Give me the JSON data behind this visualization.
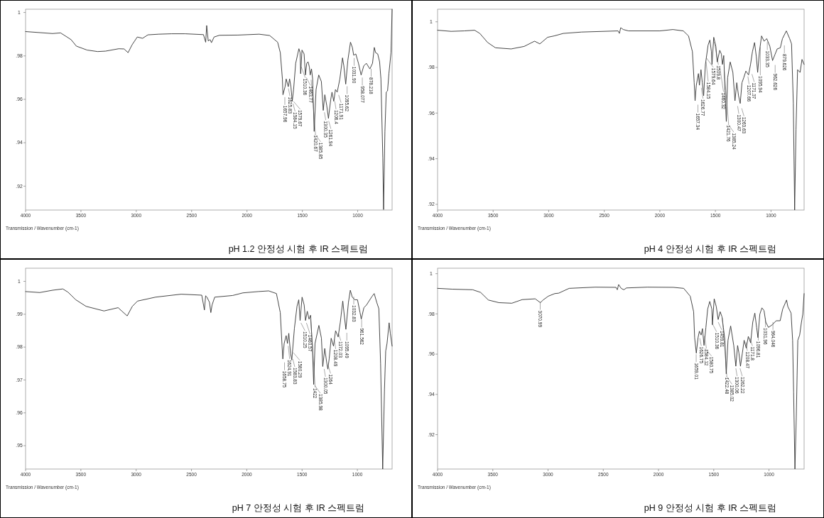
{
  "chart_data": [
    {
      "type": "line",
      "title": "pH 1.2 안정성 시험 후 IR 스펙트럼",
      "xlabel": "Transmission / Wavenumber (cm-1)",
      "xlim": [
        4000,
        689
      ],
      "xticks": [
        4000,
        3500,
        3000,
        2500,
        2000,
        1500,
        1000
      ],
      "ylim": [
        0.909,
        1.0015
      ],
      "yticks": [
        {
          "value": 1,
          "label": "1"
        },
        {
          "value": 0.98,
          "label": ".98"
        },
        {
          "value": 0.96,
          "label": ".96"
        },
        {
          "value": 0.94,
          "label": ".94"
        },
        {
          "value": 0.92,
          "label": ".92"
        }
      ],
      "x": [
        4000,
        3756,
        3684,
        3589,
        3541,
        3445,
        3349,
        3278,
        3158,
        3110,
        3074,
        3038,
        2991,
        2943,
        2895,
        2799,
        2680,
        2560,
        2393,
        2373,
        2364,
        2350,
        2333,
        2321,
        2297,
        2249,
        2082,
        1890,
        1795,
        1723,
        1699,
        1680,
        1675,
        1656,
        1646,
        1627,
        1615,
        1603,
        1591,
        1579,
        1560,
        1531,
        1520,
        1515,
        1503,
        1484,
        1472,
        1460,
        1448,
        1436,
        1429,
        1417,
        1407,
        1393,
        1376,
        1352,
        1328,
        1311,
        1297,
        1280,
        1264,
        1244,
        1232,
        1216,
        1201,
        1185,
        1161,
        1137,
        1125,
        1108,
        1089,
        1065,
        1048,
        1036,
        1017,
        993,
        969,
        945,
        922,
        890,
        866,
        850,
        838,
        819,
        802,
        790,
        773,
        766,
        754,
        742,
        730,
        718,
        699,
        689
      ],
      "series": [
        {
          "color": "#333333",
          "values": [
            0.9912,
            0.9903,
            0.9906,
            0.9875,
            0.9845,
            0.9827,
            0.982,
            0.9822,
            0.9833,
            0.9832,
            0.9815,
            0.9851,
            0.9887,
            0.9881,
            0.9897,
            0.99,
            0.9902,
            0.9902,
            0.9898,
            0.9863,
            0.994,
            0.9869,
            0.9875,
            0.9861,
            0.9887,
            0.9895,
            0.9896,
            0.99,
            0.9894,
            0.9863,
            0.9815,
            0.9694,
            0.9621,
            0.9658,
            0.9694,
            0.9658,
            0.9694,
            0.9658,
            0.9591,
            0.9645,
            0.9766,
            0.9833,
            0.9815,
            0.9718,
            0.9827,
            0.9809,
            0.9712,
            0.9766,
            0.9773,
            0.9748,
            0.9712,
            0.974,
            0.9694,
            0.9452,
            0.9645,
            0.9712,
            0.9682,
            0.9549,
            0.9621,
            0.9573,
            0.9512,
            0.9597,
            0.9633,
            0.9591,
            0.9645,
            0.9633,
            0.9694,
            0.9791,
            0.9754,
            0.967,
            0.9779,
            0.9863,
            0.9839,
            0.9803,
            0.9809,
            0.9766,
            0.9712,
            0.9754,
            0.9766,
            0.974,
            0.9766,
            0.9839,
            0.9815,
            0.9809,
            0.9773,
            0.9694,
            0.9331,
            0.9092,
            0.9452,
            0.9633,
            0.9639,
            0.9718,
            0.9815,
            1.0015
          ]
        }
      ],
      "annotations": [
        {
          "text": "1657.96",
          "x": 1657.96,
          "y": 0.962
        },
        {
          "text": "1625.83",
          "x": 1625.83,
          "y": 0.966
        },
        {
          "text": "1584.15",
          "x": 1584.15,
          "y": 0.959
        },
        {
          "text": "1579.67",
          "x": 1579.67,
          "y": 0.96
        },
        {
          "text": "1510.36",
          "x": 1510.36,
          "y": 0.976
        },
        {
          "text": "1463.77",
          "x": 1463.77,
          "y": 0.971
        },
        {
          "text": "1420.67",
          "x": 1420.67,
          "y": 0.97
        },
        {
          "text": "1385.85",
          "x": 1385.85,
          "y": 0.945
        },
        {
          "text": "1300.35",
          "x": 1300.35,
          "y": 0.955
        },
        {
          "text": "1261.94",
          "x": 1261.94,
          "y": 0.951
        },
        {
          "text": "1206.4",
          "x": 1206.4,
          "y": 0.96
        },
        {
          "text": "1171.91",
          "x": 1171.91,
          "y": 0.963
        },
        {
          "text": "1095.62",
          "x": 1095.62,
          "y": 0.967
        },
        {
          "text": "1031.90",
          "x": 1031.9,
          "y": 0.98
        },
        {
          "text": "958.077",
          "x": 958.077,
          "y": 0.971
        },
        {
          "text": "878.218",
          "x": 878.218,
          "y": 0.975
        }
      ]
    },
    {
      "type": "line",
      "title": "pH 4 안정성 시험 후 IR 스펙트럼",
      "xlabel": "Transmission / Wavenumber (cm-1)",
      "xlim": [
        4000,
        702
      ],
      "xticks": [
        4000,
        3500,
        3000,
        2500,
        2000,
        1500,
        1000
      ],
      "ylim": [
        0.9175,
        1.0055
      ],
      "yticks": [
        {
          "value": 1,
          "label": "1"
        },
        {
          "value": 0.98,
          "label": ".98"
        },
        {
          "value": 0.96,
          "label": ".96"
        },
        {
          "value": 0.94,
          "label": ".94"
        },
        {
          "value": 0.92,
          "label": ".92"
        }
      ],
      "x": [
        4000,
        3878,
        3761,
        3667,
        3620,
        3549,
        3479,
        3338,
        3221,
        3127,
        3080,
        3010,
        2951,
        2869,
        2704,
        2376,
        2364,
        2352,
        2329,
        2282,
        2000,
        1883,
        1789,
        1742,
        1707,
        1691,
        1683,
        1672,
        1653,
        1644,
        1630,
        1618,
        1606,
        1590,
        1566,
        1550,
        1536,
        1531,
        1515,
        1496,
        1484,
        1461,
        1446,
        1437,
        1425,
        1414,
        1402,
        1390,
        1367,
        1343,
        1324,
        1308,
        1292,
        1277,
        1261,
        1245,
        1226,
        1202,
        1184,
        1167,
        1148,
        1132,
        1120,
        1104,
        1085,
        1062,
        1038,
        1010,
        986,
        963,
        944,
        916,
        897,
        862,
        832,
        815,
        799,
        787,
        775,
        761,
        738,
        721,
        702
      ],
      "series": [
        {
          "color": "#333333",
          "values": [
            0.9963,
            0.9958,
            0.996,
            0.9963,
            0.9949,
            0.9909,
            0.9886,
            0.9881,
            0.9892,
            0.9915,
            0.9903,
            0.9932,
            0.9938,
            0.9949,
            0.9955,
            0.996,
            0.9949,
            0.9974,
            0.9966,
            0.996,
            0.996,
            0.9966,
            0.996,
            0.9938,
            0.9869,
            0.9733,
            0.9654,
            0.9722,
            0.9773,
            0.9722,
            0.979,
            0.9733,
            0.9676,
            0.9813,
            0.9898,
            0.992,
            0.9869,
            0.9813,
            0.9932,
            0.9892,
            0.9824,
            0.9875,
            0.9858,
            0.9813,
            0.9852,
            0.9699,
            0.9563,
            0.9755,
            0.9824,
            0.9778,
            0.9654,
            0.9733,
            0.9676,
            0.9642,
            0.9733,
            0.9755,
            0.9784,
            0.9767,
            0.9813,
            0.9869,
            0.9909,
            0.9847,
            0.9778,
            0.9869,
            0.9938,
            0.9915,
            0.9926,
            0.9892,
            0.983,
            0.9858,
            0.9881,
            0.9886,
            0.9926,
            0.996,
            0.9926,
            0.9903,
            0.9642,
            0.9175,
            0.9529,
            0.979,
            0.9778,
            0.9835,
            0.9813
          ]
        }
      ],
      "annotations": [
        {
          "text": "1657.34",
          "x": 1657.34,
          "y": 0.9646
        },
        {
          "text": "1626.77",
          "x": 1626.77,
          "y": 0.972
        },
        {
          "text": "1584.15",
          "x": 1584.15,
          "y": 0.9834
        },
        {
          "text": "1579.64",
          "x": 1579.64,
          "y": 0.985
        },
        {
          "text": "1509.8",
          "x": 1509.8,
          "y": 0.9921
        },
        {
          "text": "1460.32",
          "x": 1460.32,
          "y": 0.981
        },
        {
          "text": "1421.76",
          "x": 1421.76,
          "y": 0.98
        },
        {
          "text": "1385.24",
          "x": 1385.24,
          "y": 0.956
        },
        {
          "text": "1300.47",
          "x": 1300.47,
          "y": 0.964
        },
        {
          "text": "1263.63",
          "x": 1263.63,
          "y": 0.963
        },
        {
          "text": "1207.66",
          "x": 1207.66,
          "y": 0.977
        },
        {
          "text": "1171.37",
          "x": 1171.37,
          "y": 0.978
        },
        {
          "text": "1095.94",
          "x": 1095.94,
          "y": 0.9898
        },
        {
          "text": "1033.35",
          "x": 1033.35,
          "y": 0.992
        },
        {
          "text": "962.626",
          "x": 962.626,
          "y": 0.982
        },
        {
          "text": "879.626",
          "x": 879.626,
          "y": 0.9906
        }
      ]
    },
    {
      "type": "line",
      "title": "pH 7 안정성 시험 후 IR 스펙트럼",
      "xlabel": "Transmission / Wavenumber (cm-1)",
      "xlim": [
        4000,
        686
      ],
      "xticks": [
        4000,
        3500,
        3000,
        2500,
        2000,
        1500,
        1000
      ],
      "ylim": [
        0.9429,
        1.004
      ],
      "yticks": [
        {
          "value": 1,
          "label": "1"
        },
        {
          "value": 0.99,
          "label": ".99"
        },
        {
          "value": 0.98,
          "label": ".98"
        },
        {
          "value": 0.97,
          "label": ".97"
        },
        {
          "value": 0.96,
          "label": ".96"
        },
        {
          "value": 0.95,
          "label": ".95"
        }
      ],
      "x": [
        4000,
        3872,
        3756,
        3663,
        3616,
        3546,
        3453,
        3291,
        3163,
        3128,
        3081,
        3035,
        2988,
        2825,
        2593,
        2407,
        2383,
        2372,
        2360,
        2337,
        2325,
        2314,
        2290,
        2128,
        2035,
        1895,
        1802,
        1732,
        1697,
        1681,
        1674,
        1662,
        1644,
        1632,
        1620,
        1604,
        1593,
        1569,
        1546,
        1530,
        1518,
        1500,
        1481,
        1469,
        1453,
        1437,
        1423,
        1407,
        1395,
        1383,
        1348,
        1325,
        1313,
        1295,
        1279,
        1267,
        1255,
        1237,
        1216,
        1197,
        1174,
        1155,
        1132,
        1116,
        1104,
        1081,
        1064,
        1046,
        1023,
        999,
        976,
        965,
        941,
        918,
        872,
        848,
        825,
        806,
        790,
        771,
        755,
        744,
        732,
        713,
        702,
        686
      ],
      "series": [
        {
          "color": "#333333",
          "values": [
            0.9969,
            0.9966,
            0.9973,
            0.9977,
            0.9967,
            0.9944,
            0.9924,
            0.991,
            0.992,
            0.9909,
            0.9895,
            0.9924,
            0.994,
            0.9952,
            0.9961,
            0.9958,
            0.9913,
            0.9956,
            0.9952,
            0.9936,
            0.9905,
            0.9928,
            0.9952,
            0.9957,
            0.9965,
            0.9969,
            0.9971,
            0.9963,
            0.9905,
            0.9803,
            0.9764,
            0.9811,
            0.9835,
            0.9811,
            0.9842,
            0.978,
            0.9761,
            0.9858,
            0.9924,
            0.9944,
            0.9881,
            0.9952,
            0.9928,
            0.9881,
            0.9909,
            0.9885,
            0.9897,
            0.9803,
            0.9686,
            0.9811,
            0.9866,
            0.9827,
            0.9741,
            0.9796,
            0.9757,
            0.9733,
            0.9764,
            0.9827,
            0.9803,
            0.985,
            0.9831,
            0.9874,
            0.994,
            0.9889,
            0.9854,
            0.9936,
            0.9973,
            0.9952,
            0.9944,
            0.9944,
            0.9905,
            0.9885,
            0.992,
            0.9928,
            0.9952,
            0.9963,
            0.9936,
            0.9917,
            0.9749,
            0.9429,
            0.9671,
            0.9788,
            0.9811,
            0.9874,
            0.9842,
            0.9803
          ]
        }
      ],
      "annotations": [
        {
          "text": "1658.75",
          "x": 1658.75,
          "y": 0.976
        },
        {
          "text": "1624.91",
          "x": 1624.91,
          "y": 0.981
        },
        {
          "text": "1583.83",
          "x": 1583.83,
          "y": 0.977
        },
        {
          "text": "1580.29",
          "x": 1580.29,
          "y": 0.979
        },
        {
          "text": "1510.25",
          "x": 1510.25,
          "y": 0.988
        },
        {
          "text": "1460.57",
          "x": 1460.57,
          "y": 0.988
        },
        {
          "text": "1422",
          "x": 1422,
          "y": 0.989
        },
        {
          "text": "1385.98",
          "x": 1385.98,
          "y": 0.969
        },
        {
          "text": "1300.05",
          "x": 1300.05,
          "y": 0.974
        },
        {
          "text": "1264",
          "x": 1264,
          "y": 0.975
        },
        {
          "text": "1208.49",
          "x": 1208.49,
          "y": 0.983
        },
        {
          "text": "1172.03",
          "x": 1172.03,
          "y": 0.985
        },
        {
          "text": "1095.49",
          "x": 1095.49,
          "y": 0.985
        },
        {
          "text": "1032.83",
          "x": 1032.83,
          "y": 0.996
        },
        {
          "text": "961.562",
          "x": 961.562,
          "y": 0.989
        }
      ]
    },
    {
      "type": "line",
      "title": "pH 9 안정성 시험 후 IR 스펙트럼",
      "xlabel": "Transmission / Wavenumber (cm-1)",
      "xlim": [
        4000,
        682
      ],
      "xticks": [
        4000,
        3500,
        3000,
        2500,
        2000,
        1500,
        1000
      ],
      "ylim": [
        0.9029,
        1.0027
      ],
      "yticks": [
        {
          "value": 1,
          "label": "1"
        },
        {
          "value": 0.98,
          "label": ".98"
        },
        {
          "value": 0.96,
          "label": ".96"
        },
        {
          "value": 0.94,
          "label": ".94"
        },
        {
          "value": 0.92,
          "label": ".92"
        }
      ],
      "x": [
        4000,
        3870,
        3682,
        3611,
        3540,
        3446,
        3328,
        3281,
        3234,
        3116,
        3080,
        3069,
        3045,
        2998,
        2939,
        2904,
        2809,
        2573,
        2385,
        2373,
        2361,
        2338,
        2314,
        2290,
        2102,
        1866,
        1772,
        1713,
        1682,
        1673,
        1658,
        1642,
        1630,
        1614,
        1602,
        1588,
        1571,
        1555,
        1536,
        1517,
        1512,
        1496,
        1477,
        1460,
        1442,
        1425,
        1413,
        1399,
        1387,
        1371,
        1347,
        1319,
        1300,
        1284,
        1272,
        1258,
        1241,
        1225,
        1206,
        1187,
        1166,
        1147,
        1128,
        1112,
        1100,
        1083,
        1064,
        1045,
        1029,
        1005,
        970,
        935,
        899,
        876,
        841,
        829,
        800,
        786,
        777,
        765,
        753,
        739,
        722,
        706,
        694,
        682
      ],
      "series": [
        {
          "color": "#333333",
          "values": [
            0.9927,
            0.9923,
            0.992,
            0.9907,
            0.9869,
            0.9856,
            0.9853,
            0.9862,
            0.9871,
            0.9875,
            0.986,
            0.9856,
            0.9869,
            0.9888,
            0.9901,
            0.9903,
            0.9927,
            0.9933,
            0.9932,
            0.992,
            0.9946,
            0.9927,
            0.992,
            0.9929,
            0.9933,
            0.9932,
            0.9927,
            0.9888,
            0.9811,
            0.9682,
            0.9605,
            0.9682,
            0.9714,
            0.9695,
            0.9727,
            0.9643,
            0.9733,
            0.9824,
            0.9862,
            0.9824,
            0.9746,
            0.9875,
            0.9836,
            0.9772,
            0.9811,
            0.9785,
            0.9733,
            0.9669,
            0.9502,
            0.9669,
            0.974,
            0.9643,
            0.954,
            0.9643,
            0.9605,
            0.954,
            0.9605,
            0.9669,
            0.963,
            0.9688,
            0.9656,
            0.9759,
            0.9804,
            0.9733,
            0.9682,
            0.9798,
            0.983,
            0.9817,
            0.9759,
            0.9733,
            0.9746,
            0.9766,
            0.9766,
            0.9824,
            0.9869,
            0.9836,
            0.9804,
            0.9669,
            0.9412,
            0.9029,
            0.9283,
            0.9669,
            0.9695,
            0.9759,
            0.9798,
            0.9901
          ]
        }
      ],
      "annotations": [
        {
          "text": "3070.99",
          "x": 3070.99,
          "y": 0.987
        },
        {
          "text": "1659.01",
          "x": 1659.01,
          "y": 0.961
        },
        {
          "text": "1626.75",
          "x": 1626.75,
          "y": 0.969
        },
        {
          "text": "1584.12",
          "x": 1584.12,
          "y": 0.97
        },
        {
          "text": "1580.75",
          "x": 1580.75,
          "y": 0.964
        },
        {
          "text": "1510.36",
          "x": 1510.36,
          "y": 0.976
        },
        {
          "text": "1459.81",
          "x": 1459.81,
          "y": 0.977
        },
        {
          "text": "1422.48",
          "x": 1422.48,
          "y": 0.979
        },
        {
          "text": "1385.02",
          "x": 1385.02,
          "y": 0.95
        },
        {
          "text": "1300.06",
          "x": 1300.06,
          "y": 0.954
        },
        {
          "text": "1262.22",
          "x": 1262.22,
          "y": 0.954
        },
        {
          "text": "1208.47",
          "x": 1208.47,
          "y": 0.967
        },
        {
          "text": "1171.8",
          "x": 1171.8,
          "y": 0.969
        },
        {
          "text": "1096.81",
          "x": 1096.81,
          "y": 0.972
        },
        {
          "text": "1031.96",
          "x": 1031.96,
          "y": 0.979
        },
        {
          "text": "964.046",
          "x": 964.046,
          "y": 0.977
        }
      ]
    }
  ]
}
